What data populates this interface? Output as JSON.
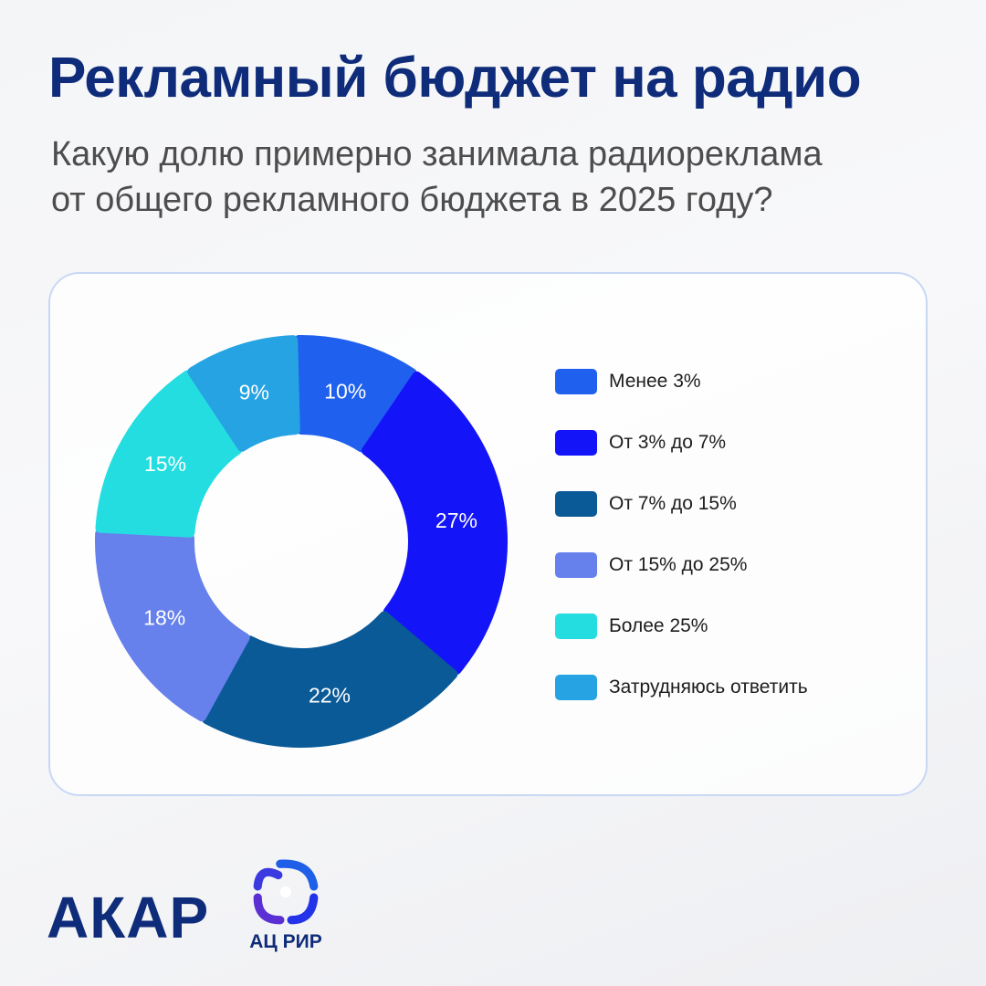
{
  "header": {
    "title": "Рекламный бюджет на радио",
    "subtitle_lines": [
      "Какую долю примерно занимала радиореклама",
      "от общего рекламного бюджета в 2025 году?"
    ]
  },
  "chart_data": {
    "type": "pie",
    "variant": "donut",
    "title": "",
    "legend_position": "right",
    "categories": [
      "Менее 3%",
      "От 3% до 7%",
      "От 7% до 15%",
      "От 15% до 25%",
      "Более 25%",
      "Затрудняюсь ответить"
    ],
    "values": [
      10,
      27,
      22,
      18,
      15,
      9
    ],
    "data_labels": [
      "10%",
      "27%",
      "22%",
      "18%",
      "15%",
      "9%"
    ],
    "colors": [
      "#2060ee",
      "#1414f8",
      "#0a5a98",
      "#6680ec",
      "#24dde0",
      "#25a3e2"
    ]
  },
  "logos": {
    "akar": "АКАР",
    "air": "АЦ РИР"
  }
}
